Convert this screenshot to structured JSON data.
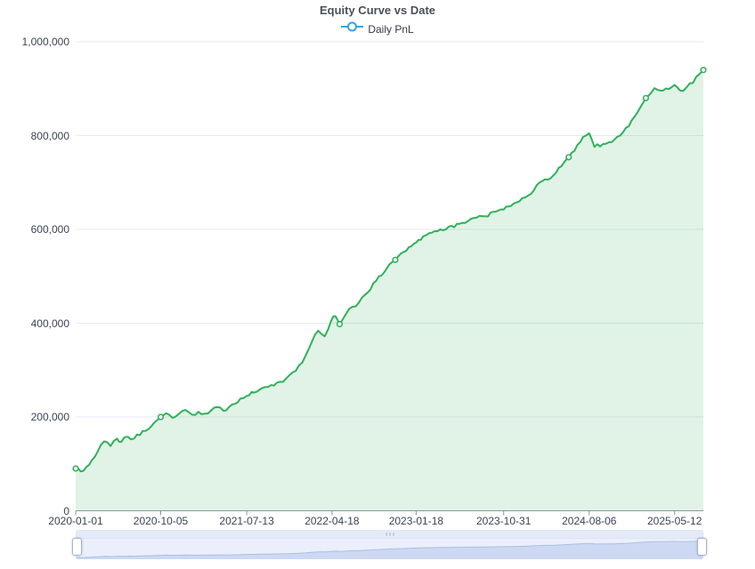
{
  "header": {
    "title": "Equity Curve vs Date",
    "legend": {
      "label": "Daily PnL",
      "marker_color": "#3aa1e6"
    }
  },
  "colors": {
    "line_green": "#2fb15a",
    "area_green_rgba": "rgba(47,177,90,0.15)",
    "gridline": "#e5eaf3",
    "axis": "#8f939b",
    "axis_label": "#3d4354",
    "legend_blue": "#3aa1e6",
    "dz_track": "#eaeffb",
    "dz_shadow_fill": "#cdd9f2",
    "dz_shadow_line": "#a9c0ea"
  },
  "chart_data": {
    "type": "area",
    "title": "Equity Curve vs Date",
    "xlabel": "",
    "ylabel": "",
    "legend_position": "top",
    "grid": true,
    "ylim": [
      0,
      1000000
    ],
    "x_range": [
      "2020-01-01",
      "2025-08-14"
    ],
    "x_tick_labels": [
      "2020-01-01",
      "2020-10-05",
      "2021-07-13",
      "2022-04-18",
      "2023-01-18",
      "2023-10-31",
      "2024-08-06",
      "2025-05-12"
    ],
    "y_ticks": {
      "values": [
        0,
        200000,
        400000,
        600000,
        800000,
        1000000
      ],
      "labels": [
        "0",
        "200,000",
        "400,000",
        "600,000",
        "800,000",
        "1,000,000"
      ]
    },
    "marker_indices": [
      0,
      12,
      39,
      46,
      65,
      75,
      83
    ],
    "series": [
      {
        "name": "Daily PnL",
        "x": [
          "2020-01-01",
          "2020-01-17",
          "2020-02-14",
          "2020-03-13",
          "2020-04-03",
          "2020-04-24",
          "2020-05-15",
          "2020-05-29",
          "2020-06-19",
          "2020-07-10",
          "2020-08-07",
          "2020-09-04",
          "2020-10-05",
          "2020-10-23",
          "2020-11-13",
          "2020-12-04",
          "2020-12-25",
          "2021-01-15",
          "2021-02-05",
          "2021-02-26",
          "2021-03-19",
          "2021-04-09",
          "2021-05-07",
          "2021-06-04",
          "2021-07-02",
          "2021-07-13",
          "2021-08-06",
          "2021-09-03",
          "2021-10-01",
          "2021-10-29",
          "2021-11-19",
          "2021-12-10",
          "2021-12-31",
          "2022-01-21",
          "2022-02-11",
          "2022-03-04",
          "2022-03-25",
          "2022-04-15",
          "2022-04-29",
          "2022-05-13",
          "2022-06-03",
          "2022-06-24",
          "2022-07-15",
          "2022-08-12",
          "2022-09-09",
          "2022-10-14",
          "2022-11-11",
          "2022-12-09",
          "2023-01-18",
          "2023-02-10",
          "2023-03-10",
          "2023-04-07",
          "2023-05-05",
          "2023-06-09",
          "2023-07-07",
          "2023-08-04",
          "2023-09-01",
          "2023-10-06",
          "2023-10-31",
          "2023-11-24",
          "2023-12-22",
          "2024-01-19",
          "2024-02-16",
          "2024-03-15",
          "2024-04-12",
          "2024-05-31",
          "2024-06-28",
          "2024-07-26",
          "2024-08-06",
          "2024-08-23",
          "2024-09-20",
          "2024-10-18",
          "2024-11-15",
          "2024-12-13",
          "2025-01-10",
          "2025-02-07",
          "2025-03-07",
          "2025-04-04",
          "2025-05-12",
          "2025-05-30",
          "2025-06-20",
          "2025-07-11",
          "2025-08-01",
          "2025-08-14"
        ],
        "values": [
          90000,
          84000,
          98000,
          126000,
          148000,
          138000,
          154000,
          147000,
          158000,
          154000,
          170000,
          180000,
          200000,
          208000,
          198000,
          207000,
          215000,
          205000,
          211000,
          207000,
          214000,
          221000,
          214000,
          228000,
          240000,
          245000,
          252000,
          262000,
          268000,
          275000,
          282000,
          295000,
          310000,
          330000,
          360000,
          384000,
          372000,
          405000,
          415000,
          398000,
          420000,
          435000,
          444000,
          465000,
          490000,
          517000,
          535000,
          552000,
          572000,
          585000,
          593000,
          600000,
          606000,
          612000,
          618000,
          625000,
          628000,
          638000,
          642000,
          650000,
          660000,
          672000,
          694000,
          707000,
          716000,
          754000,
          780000,
          800000,
          805000,
          776000,
          782000,
          786000,
          800000,
          820000,
          849000,
          880000,
          901000,
          896000,
          908000,
          896000,
          903000,
          912000,
          931000,
          940000
        ]
      }
    ]
  },
  "datazoom": {
    "left_handle": "drag-handle-left",
    "right_handle": "drag-handle-right"
  }
}
